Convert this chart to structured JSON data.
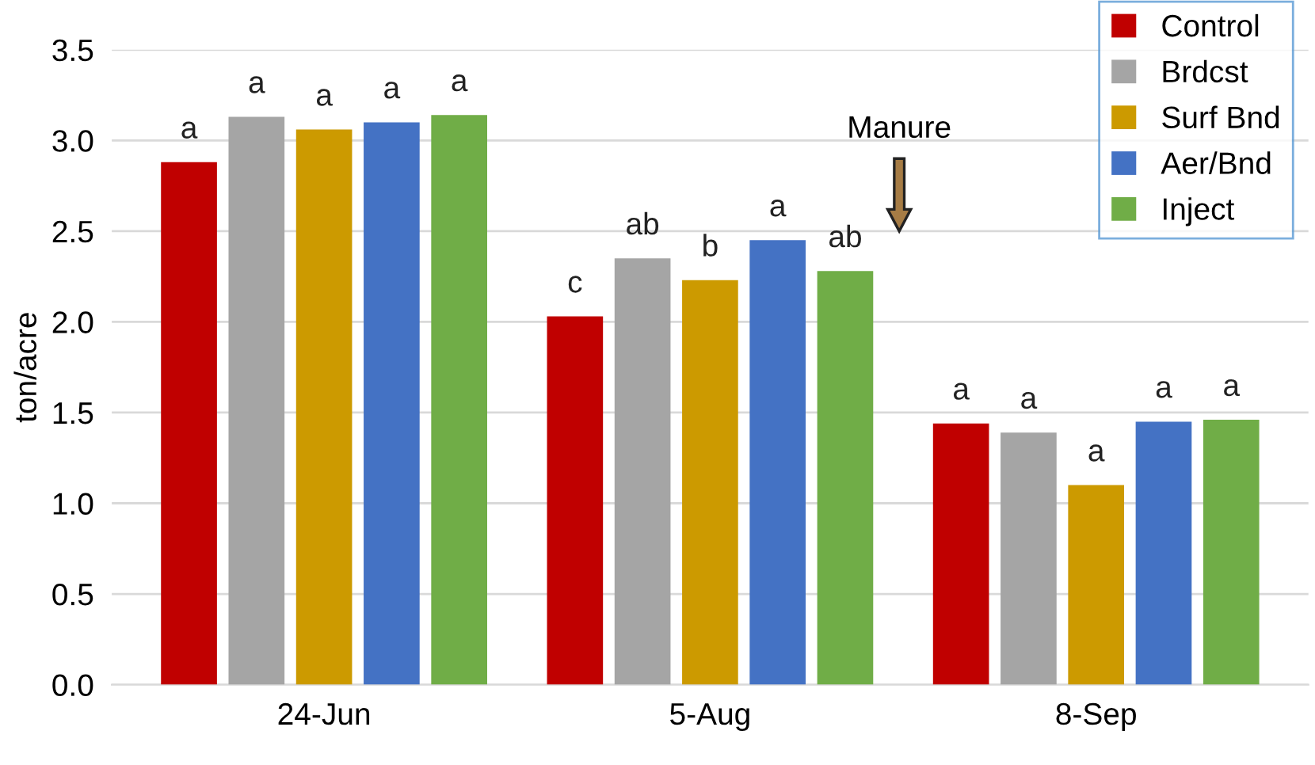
{
  "chart_data": {
    "type": "bar",
    "ylabel": "ton/acre",
    "categories": [
      "24-Jun",
      "5-Aug",
      "8-Sep"
    ],
    "series": [
      {
        "name": "Control",
        "color": "#c00000",
        "values": [
          2.88,
          2.03,
          1.44
        ],
        "value_labels": [
          "a",
          "c",
          "a"
        ]
      },
      {
        "name": "Brdcst",
        "color": "#a5a5a5",
        "values": [
          3.13,
          2.35,
          1.39
        ],
        "value_labels": [
          "a",
          "ab",
          "a"
        ]
      },
      {
        "name": "Surf Bnd",
        "color": "#cc9a00",
        "values": [
          3.06,
          2.23,
          1.1
        ],
        "value_labels": [
          "a",
          "b",
          "a"
        ]
      },
      {
        "name": "Aer/Bnd",
        "color": "#4472c4",
        "values": [
          3.1,
          2.45,
          1.45
        ],
        "value_labels": [
          "a",
          "a",
          "a"
        ]
      },
      {
        "name": "Inject",
        "color": "#70ad47",
        "values": [
          3.14,
          2.28,
          1.46
        ],
        "value_labels": [
          "a",
          "ab",
          "a"
        ]
      }
    ],
    "ylim": [
      0,
      3.5
    ],
    "yticks": [
      {
        "value": 0,
        "label": "0.0"
      },
      {
        "value": 0.5,
        "label": "0.5"
      },
      {
        "value": 1,
        "label": "1.0"
      },
      {
        "value": 1.5,
        "label": "1.5"
      },
      {
        "value": 2,
        "label": "2.0"
      },
      {
        "value": 2.5,
        "label": "2.5"
      },
      {
        "value": 3,
        "label": "3.0"
      },
      {
        "value": 3.5,
        "label": "3.5"
      }
    ],
    "grid": "y",
    "legend": "top right",
    "annotations": [
      "Manure"
    ]
  }
}
